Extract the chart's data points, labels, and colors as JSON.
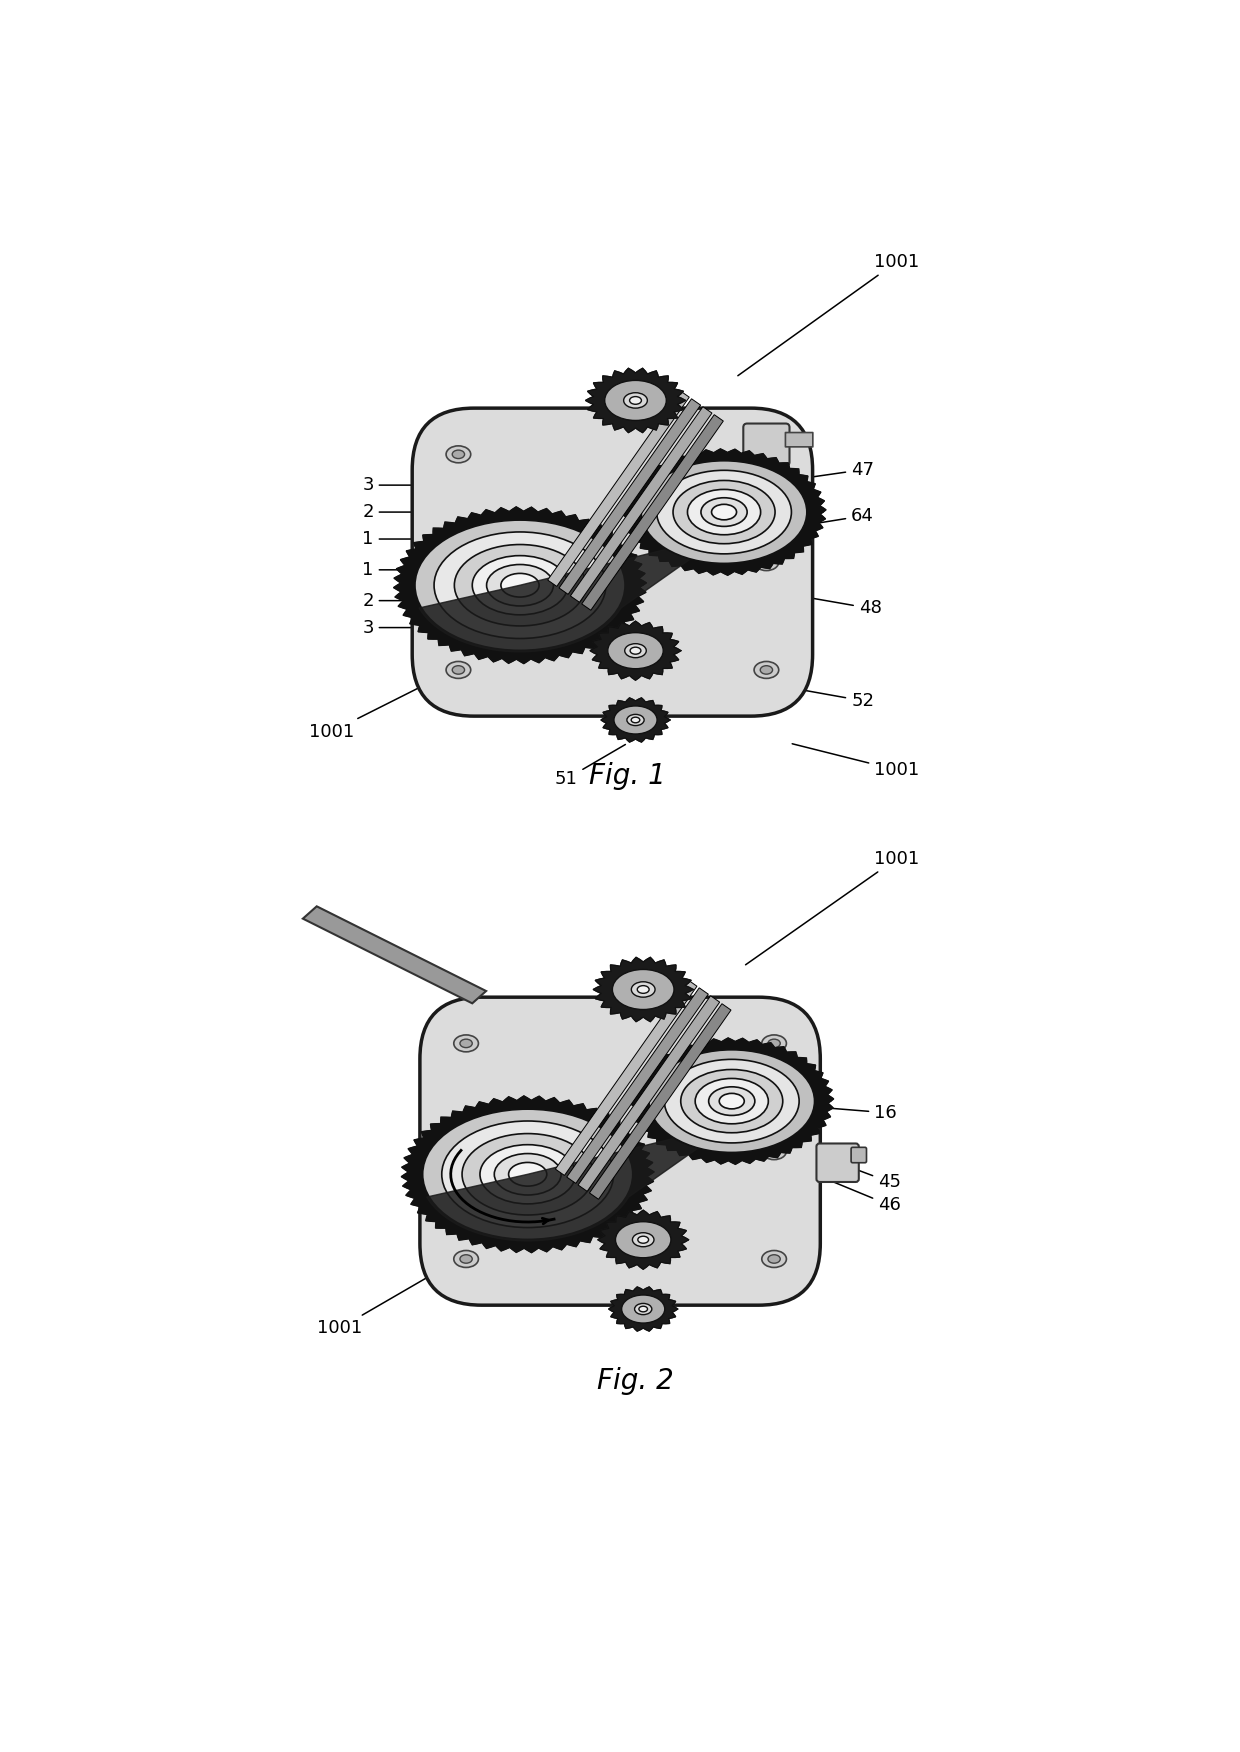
{
  "fig_width": 12.4,
  "fig_height": 17.52,
  "dpi": 100,
  "background_color": "#ffffff",
  "fig1_title": "Fig. 1",
  "fig2_title": "Fig. 2",
  "label_fontsize": 13,
  "caption_fontsize": 20,
  "annotation_color": "#000000"
}
